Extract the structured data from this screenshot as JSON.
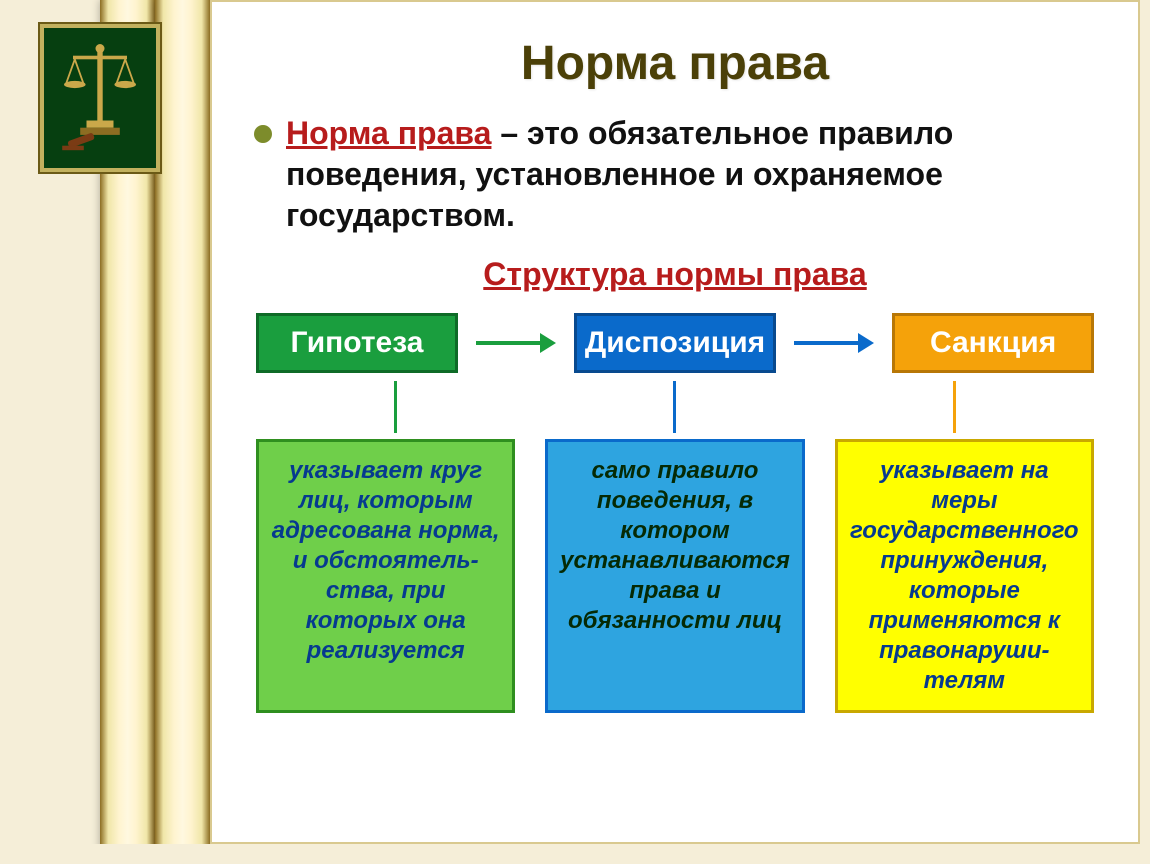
{
  "title": "Норма права",
  "definition": {
    "term": "Норма права",
    "text": " – это обязательное правило поведения, установленное и охраняемое государством."
  },
  "subheading": "Структура нормы права",
  "colors": {
    "title": "#4b4008",
    "accent_red": "#b71c1c",
    "bullet": "#7d8c2b",
    "page_bg": "#f5eed8",
    "slide_bg": "#ffffff"
  },
  "flow": {
    "nodes": [
      {
        "id": "hypothesis",
        "label": "Гипотеза",
        "bg": "#1a9e3e",
        "border": "#0e6b27",
        "conn_color": "#1a9e3e",
        "desc_bg": "#6fcf4a",
        "desc_border": "#2f8f1f",
        "desc_text_color": "#063a8f",
        "description": "указывает круг лиц, которым адресована норма, и обстоятель­ства, при которых она реализуется"
      },
      {
        "id": "disposition",
        "label": "Диспозиция",
        "bg": "#0a6acb",
        "border": "#084a8f",
        "conn_color": "#0a6acb",
        "desc_bg": "#2ea4e0",
        "desc_border": "#0a6acb",
        "desc_text_color": "#052a05",
        "description": "само правило поведения, в котором устанавлива­ются права и обязанности лиц"
      },
      {
        "id": "sanction",
        "label": "Санкция",
        "bg": "#f5a20a",
        "border": "#b87706",
        "conn_color": "#f5a20a",
        "desc_bg": "#ffff00",
        "desc_border": "#c9a800",
        "desc_text_color": "#063a8f",
        "description": "указывает на меры государствен­ного принуждения, которые применяются к правонаруши­телям"
      }
    ],
    "arrows": [
      {
        "color": "#1a9e3e"
      },
      {
        "color": "#0a6acb"
      }
    ]
  }
}
